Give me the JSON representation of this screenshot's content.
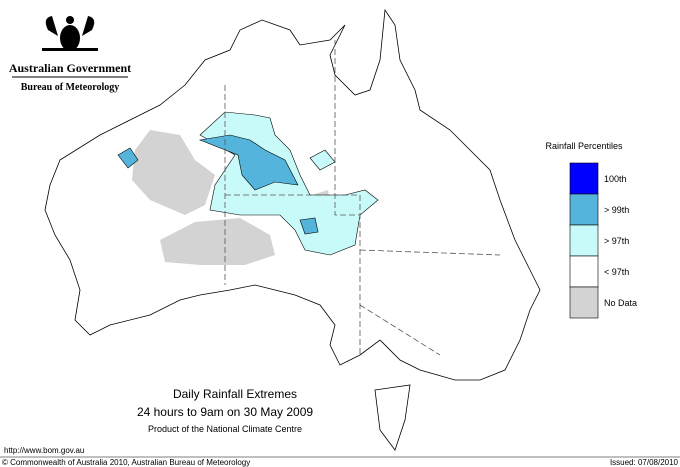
{
  "header": {
    "government": "Australian Government",
    "bureau": "Bureau of Meteorology"
  },
  "legend": {
    "title": "Rainfall Percentiles",
    "items": [
      {
        "label": "100th",
        "color": "#0000ff"
      },
      {
        "label": "> 99th",
        "color": "#55b4dc"
      },
      {
        "label": "> 97th",
        "color": "#c8fafa"
      },
      {
        "label": "< 97th",
        "color": "#ffffff"
      },
      {
        "label": "No Data",
        "color": "#d3d3d3"
      }
    ]
  },
  "caption": {
    "title": "Daily Rainfall Extremes",
    "subtitle": "24 hours to 9am on 30 May 2009",
    "note": "Product of the National Climate Centre"
  },
  "footer": {
    "url": "http://www.bom.gov.au",
    "copyright": "© Commonwealth of Australia 2010, Australian Bureau of Meteorology",
    "issued": "Issued: 07/08/2010"
  }
}
